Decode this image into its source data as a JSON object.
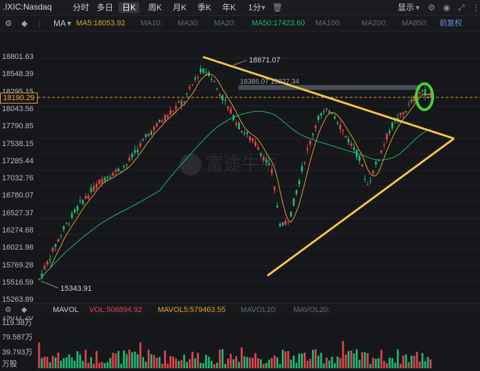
{
  "header": {
    "symbol": ".IXIC:Nasdaq",
    "tabs": [
      "分时",
      "多日",
      "日K",
      "周K",
      "月K",
      "季K",
      "年K",
      "1分"
    ],
    "active_tab": "日K",
    "display_label": "显示"
  },
  "toolbar": {
    "indicator": "MA",
    "ma5": "MA5:18053.92",
    "ma10": "MA10:",
    "ma30": "MA30:",
    "ma20": "MA20:",
    "ma50": "MA50:17423.60",
    "ma100": "MA100:",
    "ma200": "MA200:",
    "ma850": "MA850:",
    "adjust": "前复权"
  },
  "price_axis": [
    "18801.63",
    "18548.39",
    "18295.15",
    "18043.56",
    "17790.85",
    "17538.15",
    "17285.44",
    "17032.76",
    "16780.07",
    "16527.37",
    "16274.68",
    "16021.98",
    "15769.28",
    "15516.59",
    "15263.89",
    "15011.20"
  ],
  "current_price": "18190.29",
  "annotations": {
    "high": "18671.07",
    "low": "15343.91",
    "range": "18386.07 18327.34"
  },
  "volume": {
    "indicator": "MAVOL",
    "vol": "VOL:506894.92",
    "mavol5": "MAVOL5:579463.55",
    "mavol10": "MAVOL10:",
    "mavol20": "MAVOL20:",
    "axis": [
      "119.38万",
      "79.587万",
      "39.793万",
      "万股"
    ]
  },
  "colors": {
    "up": "#e2424b",
    "down": "#1fb873",
    "ma5": "#e3a233",
    "ma50": "#1fb873",
    "trend": "#f5c542",
    "highlight": "#44d62c"
  },
  "watermark": "富途牛牛",
  "chart_data": {
    "type": "candlestick",
    "ylim": [
      15011.2,
      18801.63
    ],
    "high": 18671.07,
    "low": 15343.91,
    "close_last": 18190.29,
    "ma5_last": 18053.92,
    "ma50_last": 17423.6
  }
}
